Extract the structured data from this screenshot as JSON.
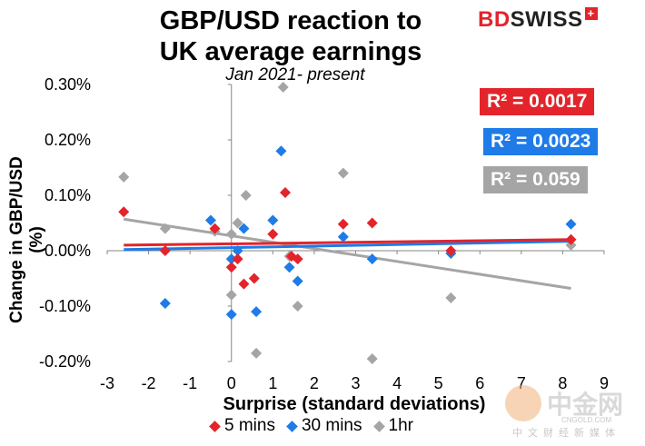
{
  "chart_data": {
    "type": "scatter",
    "title": "GBP/USD reaction to UK average earnings",
    "title_line1": "GBP/USD reaction to",
    "title_line2": "UK average earnings",
    "subtitle": "Jan 2021- present",
    "xlabel": "Surprise (standard deviations)",
    "ylabel": "Change in GBP/USD  (%)",
    "xlim": [
      -3,
      9
    ],
    "ylim": [
      -0.002,
      0.003
    ],
    "x_ticks": [
      -3,
      -2,
      -1,
      0,
      1,
      2,
      3,
      4,
      5,
      6,
      7,
      8,
      9
    ],
    "y_ticks": [
      {
        "value": 0.003,
        "label": "0.30%"
      },
      {
        "value": 0.002,
        "label": "0.20%"
      },
      {
        "value": 0.001,
        "label": "0.10%"
      },
      {
        "value": 0.0,
        "label": "0.00%"
      },
      {
        "value": -0.001,
        "label": "-0.10%"
      },
      {
        "value": -0.002,
        "label": "-0.20%"
      }
    ],
    "legend_position": "bottom",
    "series": [
      {
        "name": "5 mins",
        "color": "#e3242b",
        "points": [
          [
            -2.6,
            0.0007
          ],
          [
            -1.6,
            0.0
          ],
          [
            -0.4,
            0.0004
          ],
          [
            0.0,
            -0.0003
          ],
          [
            0.15,
            -0.00015
          ],
          [
            0.3,
            -0.0006
          ],
          [
            0.55,
            -0.0005
          ],
          [
            1.0,
            0.0003
          ],
          [
            1.3,
            0.00105
          ],
          [
            1.45,
            -0.0001
          ],
          [
            1.6,
            -0.00015
          ],
          [
            2.7,
            0.00048
          ],
          [
            3.4,
            0.0005
          ],
          [
            5.3,
            0.0
          ],
          [
            8.2,
            0.0002
          ]
        ],
        "trend": {
          "x": [
            -2.6,
            8.2
          ],
          "y": [
            0.0001,
            0.0002
          ]
        },
        "r2": "R² = 0.0017"
      },
      {
        "name": "30 mins",
        "color": "#1e7be8",
        "points": [
          [
            -1.6,
            -0.00095
          ],
          [
            -0.5,
            0.00055
          ],
          [
            0.0,
            -0.00015
          ],
          [
            0.0,
            -0.00115
          ],
          [
            0.15,
            0.0
          ],
          [
            0.3,
            0.0004
          ],
          [
            0.6,
            -0.0011
          ],
          [
            1.0,
            0.00055
          ],
          [
            1.2,
            0.0018
          ],
          [
            1.4,
            -0.0003
          ],
          [
            1.6,
            -0.00055
          ],
          [
            2.7,
            0.00025
          ],
          [
            3.4,
            -0.00015
          ],
          [
            5.3,
            -5e-05
          ],
          [
            8.2,
            0.00048
          ]
        ],
        "trend": {
          "x": [
            -2.6,
            8.2
          ],
          "y": [
            2e-05,
            0.00017
          ]
        },
        "r2": "R² = 0.0023"
      },
      {
        "name": "1hr",
        "color": "#a5a5a5",
        "points": [
          [
            -2.6,
            0.00133
          ],
          [
            -1.6,
            0.0004
          ],
          [
            -0.4,
            0.00035
          ],
          [
            0.0,
            0.0003
          ],
          [
            0.0,
            -0.0008
          ],
          [
            0.15,
            0.0005
          ],
          [
            0.35,
            0.001
          ],
          [
            0.6,
            -0.00185
          ],
          [
            1.25,
            0.00295
          ],
          [
            1.4,
            -0.0001
          ],
          [
            1.6,
            -0.001
          ],
          [
            2.7,
            0.0014
          ],
          [
            3.4,
            -0.00195
          ],
          [
            5.3,
            -0.00085
          ],
          [
            8.2,
            0.0001
          ]
        ],
        "trend": {
          "x": [
            -2.6,
            8.2
          ],
          "y": [
            0.00057,
            -0.00068
          ]
        },
        "r2": "R² = 0.059"
      }
    ]
  },
  "brand": {
    "bd": "BD",
    "swiss": "SWISS",
    "plus": "+"
  },
  "watermark": {
    "cn": "中金网",
    "en": "CNGOLD.COM",
    "cn_sub": "中文财经新媒体"
  }
}
